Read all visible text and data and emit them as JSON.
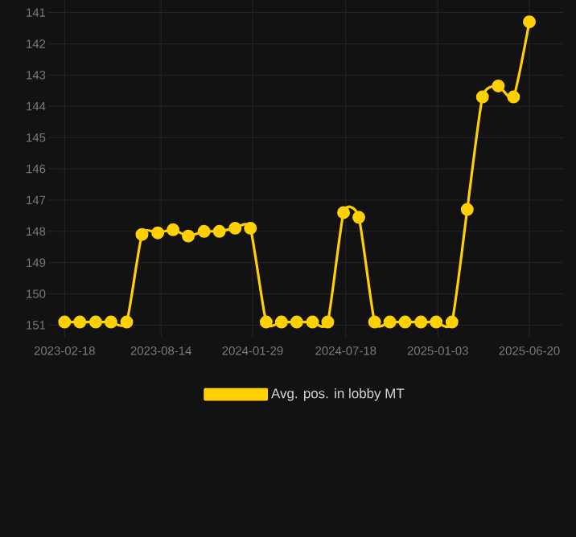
{
  "chart_data": {
    "type": "line",
    "x": [
      "2023-02-18",
      "2023-03-18",
      "2023-04-16",
      "2023-05-14",
      "2023-06-12",
      "2023-07-10",
      "2023-08-08",
      "2023-09-05",
      "2023-10-03",
      "2023-11-01",
      "2023-11-29",
      "2023-12-28",
      "2024-01-25",
      "2024-02-23",
      "2024-03-22",
      "2024-04-19",
      "2024-05-18",
      "2024-06-15",
      "2024-07-14",
      "2024-08-11",
      "2024-09-09",
      "2024-10-07",
      "2024-11-04",
      "2024-12-03",
      "2024-12-31",
      "2025-01-29",
      "2025-02-26",
      "2025-03-26",
      "2025-04-24",
      "2025-05-22",
      "2025-06-20"
    ],
    "series": [
      {
        "name": "Avg. pos. in lobby MT",
        "color": "#ffd100",
        "values": [
          150.9,
          150.9,
          150.9,
          150.9,
          150.9,
          148.1,
          148.05,
          147.95,
          148.15,
          148.0,
          148.0,
          147.9,
          147.9,
          150.9,
          150.9,
          150.9,
          150.9,
          150.9,
          147.4,
          147.55,
          150.9,
          150.9,
          150.9,
          150.9,
          150.9,
          150.9,
          147.3,
          143.7,
          143.35,
          143.7,
          141.3
        ]
      }
    ],
    "xlim": [
      "2023-01-19",
      "2025-08-21"
    ],
    "xticks": [
      "2023-02-18",
      "2023-08-14",
      "2024-01-29",
      "2024-07-18",
      "2025-01-03",
      "2025-06-20"
    ],
    "ylim": [
      151.4,
      140.6
    ],
    "yticks": [
      141,
      142,
      143,
      144,
      145,
      146,
      147,
      148,
      149,
      150,
      151
    ],
    "grid": true,
    "legend": "bottom",
    "marker": "circle",
    "line_style": "solid"
  }
}
